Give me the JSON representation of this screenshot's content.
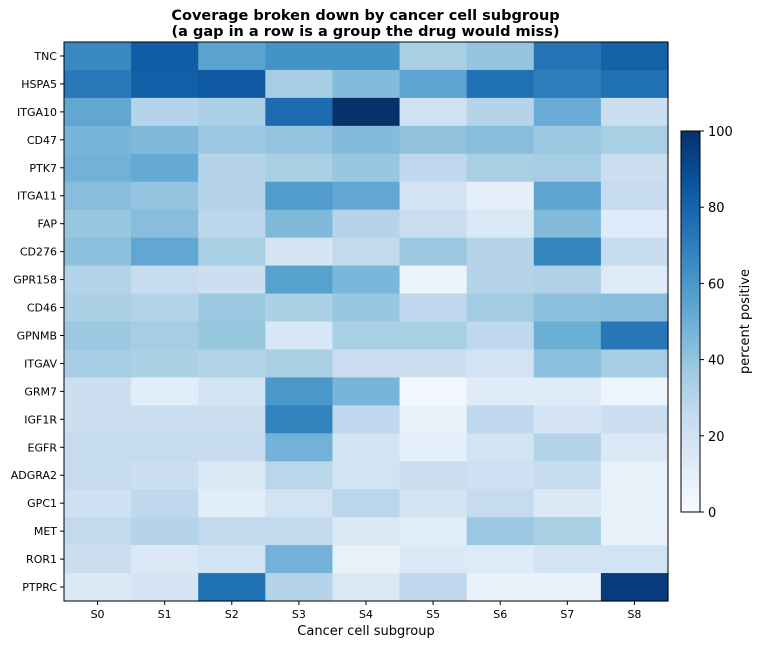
{
  "chart_data": {
    "type": "heatmap",
    "title": "Coverage broken down by cancer cell subgroup",
    "subtitle": "(a gap in a row is a group the drug would miss)",
    "xlabel": "Cancer cell subgroup",
    "ylabel": "",
    "x_categories": [
      "S0",
      "S1",
      "S2",
      "S3",
      "S4",
      "S5",
      "S6",
      "S7",
      "S8"
    ],
    "y_categories": [
      "TNC",
      "HSPA5",
      "ITGA10",
      "CD47",
      "PTK7",
      "ITGA11",
      "FAP",
      "CD276",
      "GPR158",
      "CD46",
      "GPNMB",
      "ITGAV",
      "GRM7",
      "IGF1R",
      "EGFR",
      "ADGRA2",
      "GPC1",
      "MET",
      "ROR1",
      "PTPRC"
    ],
    "values": [
      [
        66,
        83,
        55,
        62,
        62,
        34,
        40,
        74,
        81
      ],
      [
        72,
        82,
        84,
        35,
        44,
        54,
        75,
        70,
        75
      ],
      [
        53,
        30,
        33,
        77,
        100,
        20,
        30,
        51,
        23
      ],
      [
        47,
        45,
        38,
        40,
        44,
        41,
        43,
        38,
        34
      ],
      [
        48,
        52,
        30,
        34,
        39,
        27,
        34,
        35,
        22
      ],
      [
        43,
        40,
        30,
        58,
        53,
        19,
        9,
        54,
        25
      ],
      [
        39,
        43,
        28,
        45,
        30,
        23,
        15,
        44,
        13
      ],
      [
        42,
        53,
        34,
        17,
        26,
        38,
        30,
        67,
        24
      ],
      [
        31,
        24,
        22,
        56,
        46,
        6,
        30,
        32,
        13
      ],
      [
        33,
        31,
        38,
        33,
        39,
        27,
        36,
        42,
        43
      ],
      [
        38,
        35,
        39,
        16,
        34,
        34,
        27,
        50,
        73
      ],
      [
        35,
        33,
        31,
        34,
        23,
        22,
        19,
        42,
        35
      ],
      [
        22,
        11,
        18,
        60,
        47,
        3,
        12,
        12,
        5
      ],
      [
        22,
        23,
        22,
        68,
        27,
        7,
        27,
        17,
        22
      ],
      [
        25,
        25,
        24,
        48,
        18,
        9,
        19,
        31,
        14
      ],
      [
        25,
        22,
        15,
        29,
        19,
        23,
        21,
        24,
        8
      ],
      [
        21,
        27,
        11,
        19,
        29,
        19,
        25,
        14,
        8
      ],
      [
        26,
        30,
        26,
        26,
        15,
        11,
        38,
        34,
        7
      ],
      [
        23,
        14,
        19,
        48,
        8,
        14,
        13,
        19,
        19
      ],
      [
        14,
        17,
        75,
        30,
        15,
        27,
        7,
        7,
        96
      ]
    ],
    "colorbar": {
      "label": "percent positive",
      "min": 0,
      "max": 100,
      "ticks": [
        0,
        20,
        40,
        60,
        80,
        100
      ],
      "colormap": "Blues",
      "stops": [
        "#f7fbff",
        "#deebf7",
        "#c6dbef",
        "#9ecae1",
        "#6baed6",
        "#4292c6",
        "#2171b5",
        "#08519c",
        "#08306b"
      ]
    },
    "grid": false,
    "legend": "none"
  }
}
